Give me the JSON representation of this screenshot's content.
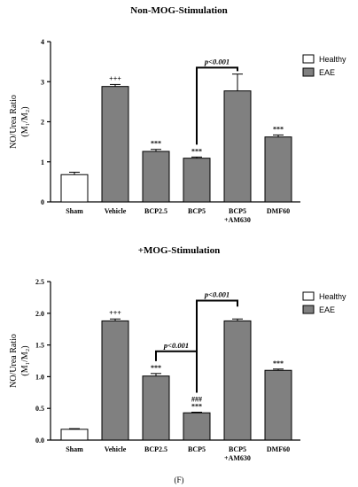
{
  "figure_label": "(F)",
  "chart_data": [
    {
      "type": "bar",
      "title": "Non-MOG-Stimulation",
      "ylabel_line1": "NO/Urea Ratio",
      "ylabel_line2": "(M₁/M₂)",
      "xlabel": "",
      "ylim": [
        0,
        4
      ],
      "yticks": [
        0,
        1,
        2,
        3,
        4
      ],
      "ytick_labels": [
        "0",
        "1",
        "2",
        "3",
        "4"
      ],
      "grid": false,
      "legend_position": "top-right",
      "categories": [
        "Sham",
        "Vehicle",
        "BCP2.5",
        "BCP5",
        "BCP5",
        "DMF60"
      ],
      "category_sublabels": [
        "",
        "",
        "",
        "",
        "+AM630",
        ""
      ],
      "values": [
        0.68,
        2.88,
        1.26,
        1.09,
        2.77,
        1.62
      ],
      "errors": [
        0.06,
        0.05,
        0.05,
        0.03,
        0.42,
        0.05
      ],
      "groups": [
        "Healthy",
        "EAE",
        "EAE",
        "EAE",
        "EAE",
        "EAE"
      ],
      "legend": [
        {
          "name": "Healthy",
          "color": "#ffffff"
        },
        {
          "name": "EAE",
          "color": "#808080"
        }
      ],
      "annotations": [
        "",
        "+++",
        "***",
        "***",
        "",
        "***"
      ],
      "annotations_2": [
        "",
        "",
        "",
        "",
        "",
        ""
      ],
      "brackets": [
        {
          "from": 3,
          "to": 4,
          "label": "p<0.001",
          "y": 3.35
        }
      ]
    },
    {
      "type": "bar",
      "title": "+MOG-Stimulation",
      "ylabel_line1": "NO/Urea Ratio",
      "ylabel_line2": "(M₁/M₂)",
      "xlabel": "",
      "ylim": [
        0,
        2.5
      ],
      "yticks": [
        0,
        0.5,
        1.0,
        1.5,
        2.0,
        2.5
      ],
      "ytick_labels": [
        "0.0",
        "0.5",
        "1.0",
        "1.5",
        "2.0",
        "2.5"
      ],
      "grid": false,
      "legend_position": "top-right",
      "categories": [
        "Sham",
        "Vehicle",
        "BCP2.5",
        "BCP5",
        "BCP5",
        "DMF60"
      ],
      "category_sublabels": [
        "",
        "",
        "",
        "",
        "+AM630",
        ""
      ],
      "values": [
        0.17,
        1.88,
        1.01,
        0.43,
        1.88,
        1.1
      ],
      "errors": [
        0.01,
        0.03,
        0.04,
        0.01,
        0.03,
        0.02
      ],
      "groups": [
        "Healthy",
        "EAE",
        "EAE",
        "EAE",
        "EAE",
        "EAE"
      ],
      "legend": [
        {
          "name": "Healthy",
          "color": "#ffffff"
        },
        {
          "name": "EAE",
          "color": "#808080"
        }
      ],
      "annotations": [
        "",
        "+++",
        "***",
        "***",
        "",
        "***"
      ],
      "annotations_2": [
        "",
        "",
        "",
        "###",
        "",
        ""
      ],
      "brackets": [
        {
          "from": 3,
          "to": 4,
          "label": "p<0.001",
          "y": 2.2
        },
        {
          "from": 2,
          "to": 3,
          "label": "p<0.001",
          "y": 1.4
        }
      ]
    }
  ]
}
